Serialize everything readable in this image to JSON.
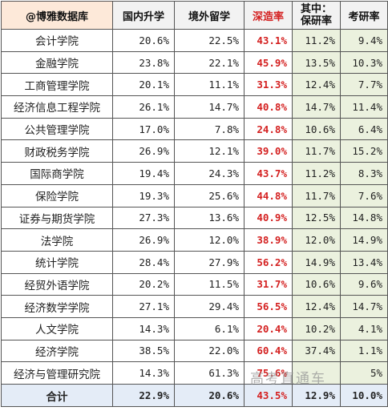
{
  "headers": {
    "source": "@博雅数据库",
    "domestic": "国内升学",
    "abroad": "境外留学",
    "deep_rate": "深造率",
    "of_which_line1": "其中：",
    "of_which_line2": "保研率",
    "exam_rate": "考研率"
  },
  "rows": [
    {
      "name": "会计学院",
      "domestic": "20.6%",
      "abroad": "22.5%",
      "deep": "43.1%",
      "baoyan": "11.2%",
      "kaoyan": "9.4%"
    },
    {
      "name": "金融学院",
      "domestic": "23.8%",
      "abroad": "22.1%",
      "deep": "45.9%",
      "baoyan": "13.5%",
      "kaoyan": "10.3%"
    },
    {
      "name": "工商管理学院",
      "domestic": "20.1%",
      "abroad": "11.1%",
      "deep": "31.3%",
      "baoyan": "12.4%",
      "kaoyan": "7.7%"
    },
    {
      "name": "经济信息工程学院",
      "domestic": "26.1%",
      "abroad": "14.7%",
      "deep": "40.8%",
      "baoyan": "14.7%",
      "kaoyan": "11.4%"
    },
    {
      "name": "公共管理学院",
      "domestic": "17.0%",
      "abroad": "7.8%",
      "deep": "24.8%",
      "baoyan": "10.6%",
      "kaoyan": "6.4%"
    },
    {
      "name": "财政税务学院",
      "domestic": "26.9%",
      "abroad": "12.1%",
      "deep": "39.0%",
      "baoyan": "11.7%",
      "kaoyan": "15.2%"
    },
    {
      "name": "国际商学院",
      "domestic": "19.4%",
      "abroad": "24.3%",
      "deep": "43.7%",
      "baoyan": "11.2%",
      "kaoyan": "8.3%"
    },
    {
      "name": "保险学院",
      "domestic": "19.3%",
      "abroad": "25.6%",
      "deep": "44.8%",
      "baoyan": "11.7%",
      "kaoyan": "7.6%"
    },
    {
      "name": "证券与期货学院",
      "domestic": "27.3%",
      "abroad": "13.6%",
      "deep": "40.9%",
      "baoyan": "12.5%",
      "kaoyan": "14.8%"
    },
    {
      "name": "法学院",
      "domestic": "26.9%",
      "abroad": "12.0%",
      "deep": "38.9%",
      "baoyan": "12.0%",
      "kaoyan": "14.9%"
    },
    {
      "name": "统计学院",
      "domestic": "28.4%",
      "abroad": "27.9%",
      "deep": "56.2%",
      "baoyan": "14.9%",
      "kaoyan": "13.4%"
    },
    {
      "name": "经贸外语学院",
      "domestic": "20.2%",
      "abroad": "11.5%",
      "deep": "31.7%",
      "baoyan": "10.6%",
      "kaoyan": "9.6%"
    },
    {
      "name": "经济数学学院",
      "domestic": "27.1%",
      "abroad": "29.4%",
      "deep": "56.5%",
      "baoyan": "12.4%",
      "kaoyan": "14.7%"
    },
    {
      "name": "人文学院",
      "domestic": "14.3%",
      "abroad": "6.1%",
      "deep": "20.4%",
      "baoyan": "10.2%",
      "kaoyan": "4.1%"
    },
    {
      "name": "经济学院",
      "domestic": "38.5%",
      "abroad": "22.0%",
      "deep": "60.4%",
      "baoyan": "37.4%",
      "kaoyan": "1.1%"
    },
    {
      "name": "经济与管理研究院",
      "domestic": "14.3%",
      "abroad": "61.3%",
      "deep": "75.6%",
      "baoyan": "",
      "kaoyan": "5%"
    }
  ],
  "total": {
    "name": "合计",
    "domestic": "22.9%",
    "abroad": "20.6%",
    "deep": "43.5%",
    "baoyan": "12.9%",
    "kaoyan": "10.0%"
  },
  "watermark": "高考直通车",
  "colors": {
    "header_bg": "#f2f2f2",
    "deep_red": "#d42020",
    "green_bg": "#ebf1de",
    "total_bg": "#e4ecf7"
  }
}
